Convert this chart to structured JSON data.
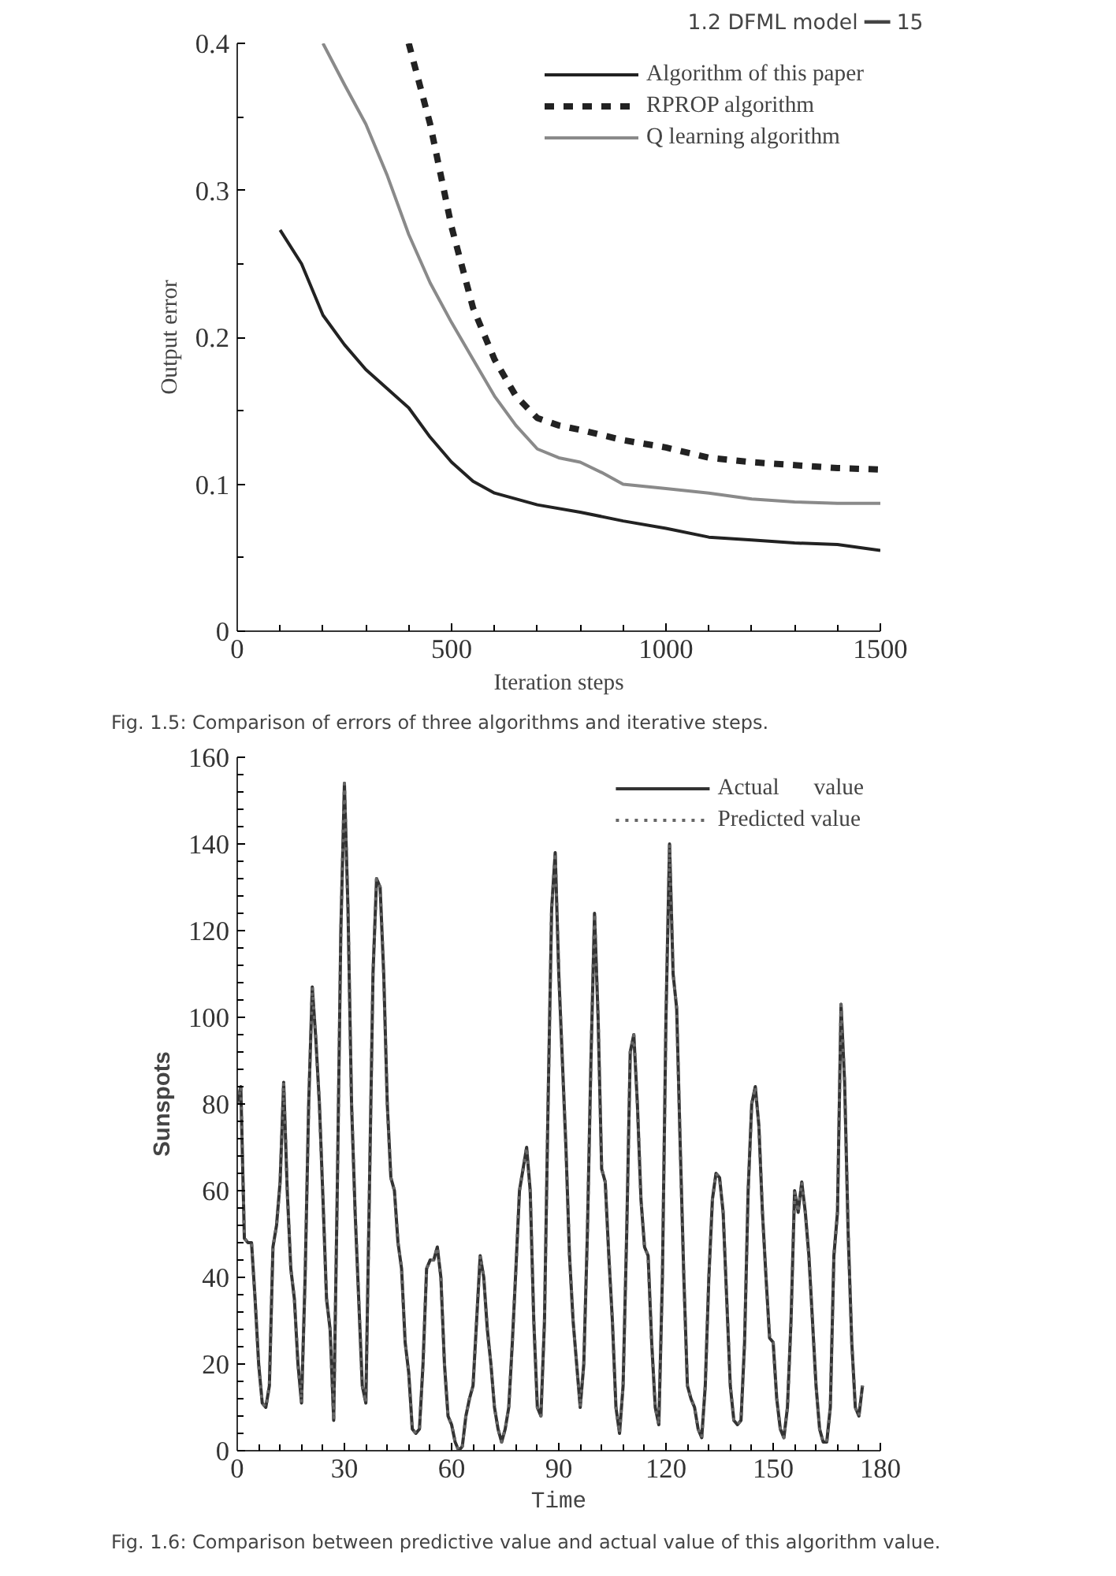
{
  "chart_data": [
    {
      "type": "line",
      "xlabel": "Iteration steps",
      "ylabel": "Output error",
      "annotations": [
        "1.2  DFML model  ━━  15",
        "Fig. 1.5: Comparison of errors of three algorithms and iterative steps."
      ],
      "xlim": [
        0,
        1500
      ],
      "xticks": [
        0,
        500,
        1000,
        1500
      ],
      "ylim": [
        0,
        0.4
      ],
      "yticks": [
        0,
        0.1,
        0.2,
        0.3,
        0.4
      ],
      "grid": false,
      "legend": "top right",
      "marker": "none",
      "series": [
        {
          "name": "Algorithm of this paper",
          "color": "#222222",
          "line_style": "solid",
          "x": [
            100,
            150,
            200,
            250,
            300,
            350,
            400,
            450,
            500,
            550,
            600,
            700,
            800,
            900,
            1000,
            1100,
            1200,
            1300,
            1400,
            1500
          ],
          "values": [
            0.273,
            0.25,
            0.215,
            0.195,
            0.178,
            0.165,
            0.152,
            0.132,
            0.115,
            0.102,
            0.094,
            0.086,
            0.081,
            0.075,
            0.07,
            0.064,
            0.062,
            0.06,
            0.059,
            0.055
          ]
        },
        {
          "name": "RPROP algorithm",
          "color": "#222222",
          "line_style": "dashed",
          "x": [
            400,
            450,
            500,
            550,
            600,
            650,
            700,
            750,
            800,
            900,
            1000,
            1100,
            1200,
            1300,
            1400,
            1500
          ],
          "values": [
            0.4,
            0.345,
            0.275,
            0.22,
            0.185,
            0.16,
            0.145,
            0.14,
            0.137,
            0.13,
            0.125,
            0.118,
            0.115,
            0.113,
            0.111,
            0.11
          ]
        },
        {
          "name": "Q learning algorithm",
          "color": "#8a8a8a",
          "line_style": "solid",
          "x": [
            200,
            250,
            300,
            350,
            400,
            450,
            500,
            550,
            600,
            650,
            700,
            750,
            800,
            850,
            900,
            1000,
            1100,
            1200,
            1300,
            1400,
            1500
          ],
          "values": [
            0.4,
            0.372,
            0.345,
            0.31,
            0.27,
            0.237,
            0.21,
            0.185,
            0.16,
            0.14,
            0.124,
            0.118,
            0.115,
            0.108,
            0.1,
            0.097,
            0.094,
            0.09,
            0.088,
            0.087,
            0.087
          ]
        }
      ]
    },
    {
      "type": "line",
      "xlabel": "Time",
      "ylabel": "Sunspots",
      "annotations": [
        "Fig. 1.6: Comparison between predictive value and actual value of this algorithm value."
      ],
      "xlim": [
        0,
        180
      ],
      "xticks": [
        0,
        30,
        60,
        90,
        120,
        150,
        180
      ],
      "ylim": [
        0,
        160
      ],
      "yticks": [
        0,
        20,
        40,
        60,
        80,
        100,
        120,
        140,
        160
      ],
      "grid": false,
      "legend": "top right",
      "marker": "none",
      "series": [
        {
          "name": "Actual      value",
          "color": "#333333",
          "line_style": "solid",
          "x": [
            0,
            1,
            2,
            3,
            4,
            5,
            6,
            7,
            8,
            9,
            10,
            11,
            12,
            13,
            14,
            15,
            16,
            17,
            18,
            19,
            20,
            21,
            22,
            23,
            24,
            25,
            26,
            27,
            28,
            29,
            30,
            31,
            32,
            33,
            34,
            35,
            36,
            37,
            38,
            39,
            40,
            41,
            42,
            43,
            44,
            45,
            46,
            47,
            48,
            49,
            50,
            51,
            52,
            53,
            54,
            55,
            56,
            57,
            58,
            59,
            60,
            61,
            62,
            63,
            64,
            65,
            66,
            67,
            68,
            69,
            70,
            71,
            72,
            73,
            74,
            75,
            76,
            77,
            78,
            79,
            80,
            81,
            82,
            83,
            84,
            85,
            86,
            87,
            88,
            89,
            90,
            91,
            92,
            93,
            94,
            95,
            96,
            97,
            98,
            99,
            100,
            101,
            102,
            103,
            104,
            105,
            106,
            107,
            108,
            109,
            110,
            111,
            112,
            113,
            114,
            115,
            116,
            117,
            118,
            119,
            120,
            121,
            122,
            123,
            124,
            125,
            126,
            127,
            128,
            129,
            130,
            131,
            132,
            133,
            134,
            135,
            136,
            137,
            138,
            139,
            140,
            141,
            142,
            143,
            144,
            145,
            146,
            147,
            148,
            149,
            150,
            151,
            152,
            153,
            154,
            155,
            156,
            157,
            158,
            159,
            160,
            161,
            162,
            163,
            164,
            165,
            166,
            167,
            168,
            169,
            170,
            171,
            172,
            173,
            174,
            175
          ],
          "values": [
            80,
            84,
            49,
            48,
            48,
            35,
            20,
            11,
            10,
            15,
            47,
            52,
            62,
            85,
            60,
            42,
            35,
            20,
            11,
            40,
            80,
            107,
            95,
            80,
            58,
            35,
            28,
            7,
            60,
            120,
            154,
            125,
            80,
            55,
            35,
            15,
            11,
            60,
            110,
            132,
            130,
            110,
            80,
            63,
            60,
            48,
            42,
            25,
            18,
            5,
            4,
            5,
            20,
            42,
            44,
            44,
            47,
            40,
            20,
            8,
            6,
            2,
            0,
            1,
            8,
            12,
            15,
            30,
            45,
            40,
            28,
            20,
            10,
            5,
            2,
            5,
            10,
            25,
            42,
            60,
            65,
            70,
            60,
            30,
            10,
            8,
            30,
            80,
            125,
            138,
            110,
            90,
            70,
            45,
            30,
            20,
            10,
            20,
            50,
            90,
            124,
            100,
            65,
            62,
            45,
            30,
            10,
            4,
            15,
            50,
            92,
            96,
            80,
            58,
            47,
            45,
            25,
            10,
            6,
            40,
            100,
            140,
            110,
            102,
            70,
            40,
            15,
            12,
            10,
            5,
            3,
            15,
            40,
            58,
            64,
            63,
            55,
            35,
            15,
            7,
            6,
            7,
            25,
            60,
            80,
            84,
            75,
            55,
            40,
            26,
            25,
            12,
            5,
            3,
            10,
            30,
            60,
            55,
            62,
            55,
            45,
            30,
            15,
            5,
            2,
            2,
            10,
            45,
            55,
            103,
            85,
            50,
            25,
            10,
            8,
            15
          ]
        },
        {
          "name": "Predicted value",
          "color": "#666666",
          "line_style": "dotted",
          "x": [
            0,
            1,
            2,
            3,
            4,
            5,
            6,
            7,
            8,
            9,
            10,
            11,
            12,
            13,
            14,
            15,
            16,
            17,
            18,
            19,
            20,
            21,
            22,
            23,
            24,
            25,
            26,
            27,
            28,
            29,
            30,
            31,
            32,
            33,
            34,
            35,
            36,
            37,
            38,
            39,
            40,
            41,
            42,
            43,
            44,
            45,
            46,
            47,
            48,
            49,
            50,
            51,
            52,
            53,
            54,
            55,
            56,
            57,
            58,
            59,
            60,
            61,
            62,
            63,
            64,
            65,
            66,
            67,
            68,
            69,
            70,
            71,
            72,
            73,
            74,
            75,
            76,
            77,
            78,
            79,
            80,
            81,
            82,
            83,
            84,
            85,
            86,
            87,
            88,
            89,
            90,
            91,
            92,
            93,
            94,
            95,
            96,
            97,
            98,
            99,
            100,
            101,
            102,
            103,
            104,
            105,
            106,
            107,
            108,
            109,
            110,
            111,
            112,
            113,
            114,
            115,
            116,
            117,
            118,
            119,
            120,
            121,
            122,
            123,
            124,
            125,
            126,
            127,
            128,
            129,
            130,
            131,
            132,
            133,
            134,
            135,
            136,
            137,
            138,
            139,
            140,
            141,
            142,
            143,
            144,
            145,
            146,
            147,
            148,
            149,
            150,
            151,
            152,
            153,
            154,
            155,
            156,
            157,
            158,
            159,
            160,
            161,
            162,
            163,
            164,
            165,
            166,
            167,
            168,
            169,
            170,
            171,
            172,
            173,
            174,
            175
          ],
          "values": [
            80,
            84,
            49,
            48,
            48,
            35,
            20,
            11,
            10,
            15,
            47,
            52,
            62,
            85,
            60,
            42,
            35,
            20,
            11,
            40,
            80,
            107,
            95,
            80,
            58,
            35,
            28,
            7,
            60,
            120,
            154,
            125,
            80,
            55,
            35,
            15,
            11,
            60,
            110,
            132,
            130,
            110,
            80,
            63,
            60,
            48,
            42,
            25,
            18,
            5,
            4,
            5,
            20,
            42,
            44,
            44,
            47,
            40,
            20,
            8,
            6,
            2,
            0,
            1,
            8,
            12,
            15,
            30,
            45,
            40,
            28,
            20,
            10,
            5,
            2,
            5,
            10,
            25,
            42,
            60,
            65,
            70,
            60,
            30,
            10,
            8,
            30,
            80,
            125,
            138,
            110,
            90,
            70,
            45,
            30,
            20,
            10,
            20,
            50,
            90,
            124,
            100,
            65,
            62,
            45,
            30,
            10,
            4,
            15,
            50,
            92,
            96,
            80,
            58,
            47,
            45,
            25,
            10,
            6,
            40,
            100,
            140,
            110,
            102,
            70,
            40,
            15,
            12,
            10,
            5,
            3,
            15,
            40,
            58,
            64,
            63,
            55,
            35,
            15,
            7,
            6,
            7,
            25,
            60,
            80,
            84,
            75,
            55,
            40,
            26,
            25,
            12,
            5,
            3,
            10,
            30,
            60,
            55,
            62,
            55,
            45,
            30,
            15,
            5,
            2,
            2,
            10,
            45,
            55,
            103,
            85,
            50,
            25,
            10,
            8,
            15
          ]
        }
      ]
    }
  ]
}
